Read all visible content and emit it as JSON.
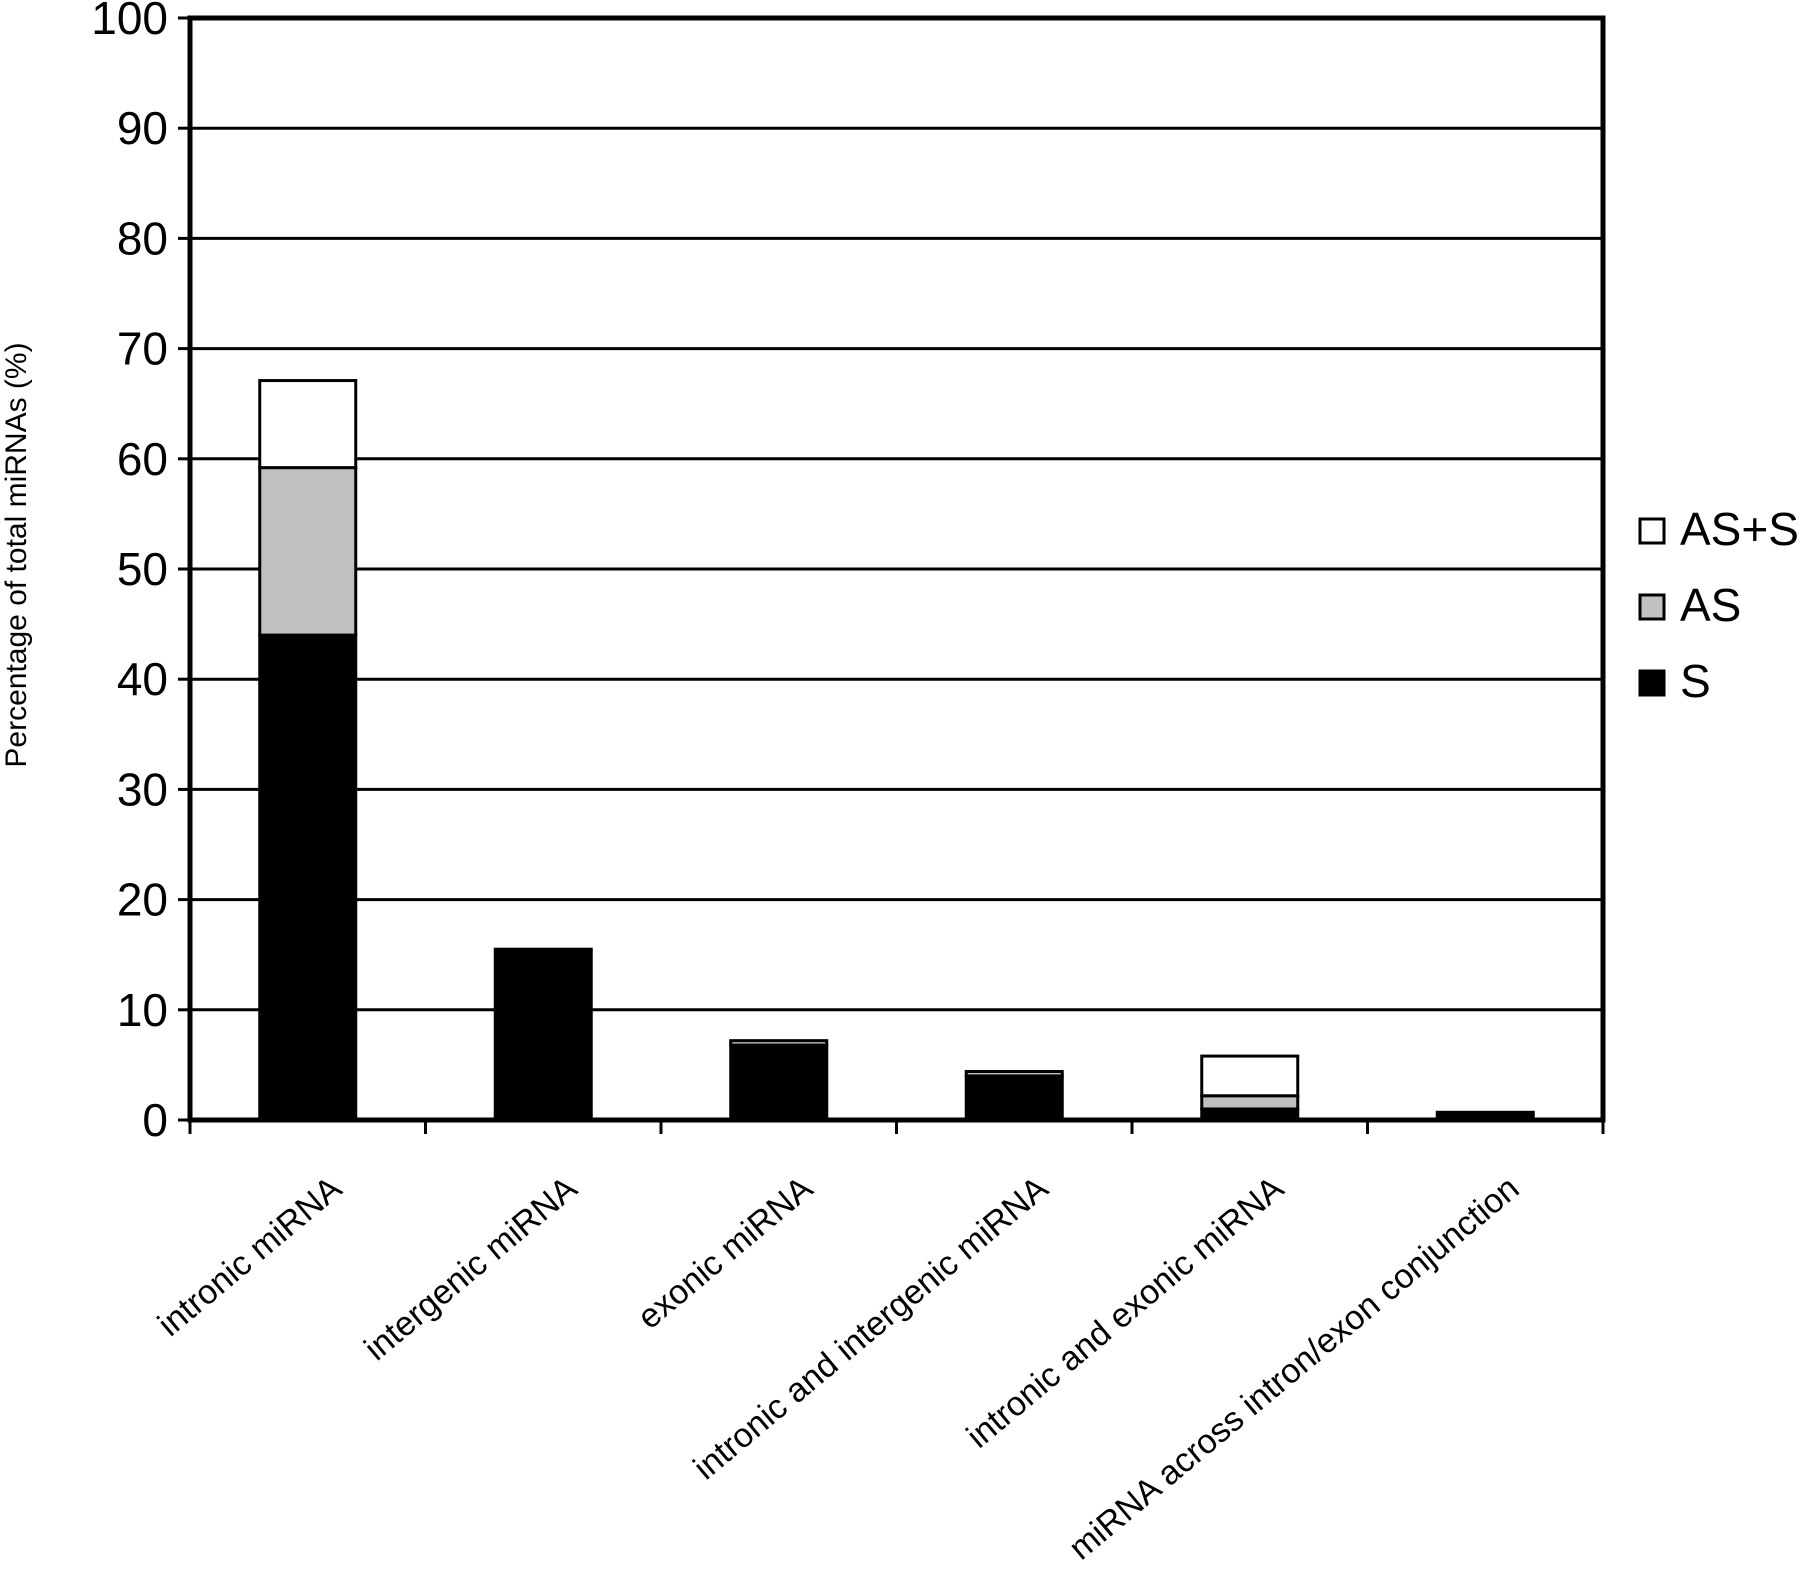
{
  "chart_data": {
    "type": "bar",
    "stacked": true,
    "title": "",
    "xlabel": "",
    "ylabel": "Percentage of total miRNAs (%)",
    "ylim": [
      0,
      100
    ],
    "yticks": [
      0,
      10,
      20,
      30,
      40,
      50,
      60,
      70,
      80,
      90,
      100
    ],
    "grid": true,
    "legend_position": "right",
    "categories": [
      "intronic miRNA",
      "intergenic miRNA",
      "exonic miRNA",
      "intronic and intergenic miRNA",
      "intronic  and exonic miRNA",
      "miRNA across intron/exon conjunction"
    ],
    "series": [
      {
        "name": "S",
        "color": "#000000",
        "values": [
          44.0,
          15.5,
          6.8,
          4.0,
          1.0,
          0.7
        ]
      },
      {
        "name": "AS",
        "color": "#c0c0c0",
        "values": [
          15.2,
          0.0,
          0.4,
          0.4,
          1.2,
          0.0
        ]
      },
      {
        "name": "AS+S",
        "color": "#ffffff",
        "values": [
          7.9,
          0.0,
          0.0,
          0.0,
          3.6,
          0.0
        ]
      }
    ],
    "legend_order": [
      "AS+S",
      "AS",
      "S"
    ]
  }
}
